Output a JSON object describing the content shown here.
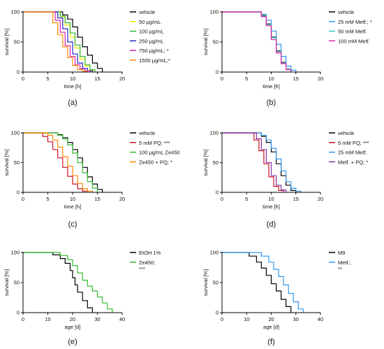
{
  "chart_data": [
    {
      "type": "line",
      "panel_label": "(a)",
      "xlabel": "time [h]",
      "ylabel": "survival [%]",
      "xlim": [
        0,
        20
      ],
      "ylim": [
        0,
        100
      ],
      "xticks": [
        "0",
        "5",
        "10",
        "15",
        "20"
      ],
      "yticks": [
        "0",
        "50",
        "100"
      ],
      "step": true,
      "legend_position": "right",
      "series": [
        {
          "name": "vehicle",
          "color": "#000000",
          "x": [
            0,
            7,
            8,
            9,
            10,
            11,
            12,
            13,
            14,
            15,
            16
          ],
          "y": [
            100,
            100,
            95,
            88,
            75,
            58,
            42,
            28,
            15,
            6,
            0
          ]
        },
        {
          "name": "50 μg/mL",
          "color": "#f2e600",
          "x": [
            0,
            6.5,
            7.5,
            8.5,
            9.5,
            10.5,
            11.5,
            12.5,
            13.5,
            14.5
          ],
          "y": [
            100,
            100,
            92,
            78,
            58,
            40,
            22,
            10,
            3,
            0
          ]
        },
        {
          "name": "100 μg/mL",
          "color": "#33bb33",
          "x": [
            0,
            6.5,
            7.5,
            8.5,
            9.5,
            10.5,
            11.5,
            12.5,
            13.5,
            14.5
          ],
          "y": [
            100,
            100,
            93,
            82,
            65,
            45,
            26,
            12,
            4,
            0
          ]
        },
        {
          "name": "250 μg/mL",
          "color": "#2222cc",
          "x": [
            0,
            6,
            7,
            8,
            9,
            10,
            11,
            12,
            13,
            14
          ],
          "y": [
            100,
            100,
            90,
            72,
            50,
            30,
            15,
            6,
            2,
            0
          ]
        },
        {
          "name": "750 μg/mL; *",
          "color": "#dd22aa",
          "x": [
            0,
            5.5,
            6.5,
            7.5,
            8.5,
            9.5,
            10.5,
            11.5,
            12.5,
            13.5
          ],
          "y": [
            100,
            100,
            86,
            66,
            44,
            26,
            12,
            5,
            2,
            0
          ]
        },
        {
          "name": "1500 μg/mL;*",
          "color": "#ff8800",
          "x": [
            0,
            5,
            6,
            7,
            8,
            9,
            10,
            11,
            12,
            13
          ],
          "y": [
            100,
            100,
            82,
            62,
            42,
            24,
            11,
            4,
            1,
            0
          ]
        }
      ]
    },
    {
      "type": "line",
      "panel_label": "(b)",
      "xlabel": "time [h]",
      "ylabel": "survival [%]",
      "xlim": [
        0,
        20
      ],
      "ylim": [
        0,
        100
      ],
      "xticks": [
        "0",
        "5",
        "10",
        "15",
        "20"
      ],
      "yticks": [
        "0",
        "50",
        "100"
      ],
      "step": true,
      "legend_position": "right",
      "series": [
        {
          "name": "vehicle",
          "color": "#000000",
          "x": [
            0,
            7,
            8,
            9,
            10,
            11,
            12,
            13,
            14
          ],
          "y": [
            100,
            100,
            94,
            80,
            58,
            35,
            16,
            5,
            0
          ]
        },
        {
          "name": "25 mM Metf.; *",
          "color": "#3399ee",
          "x": [
            0,
            7,
            8,
            9,
            10,
            11,
            12,
            13,
            14,
            15
          ],
          "y": [
            100,
            100,
            96,
            86,
            68,
            46,
            26,
            10,
            3,
            0
          ]
        },
        {
          "name": "50 mM Metf.",
          "color": "#33ccbb",
          "x": [
            0,
            7,
            8,
            9,
            10,
            11,
            12,
            13,
            14
          ],
          "y": [
            100,
            100,
            93,
            79,
            57,
            34,
            15,
            5,
            0
          ]
        },
        {
          "name": "100 mM Metf.",
          "color": "#dd22aa",
          "x": [
            0,
            7,
            8,
            9,
            10,
            11,
            12,
            13,
            14
          ],
          "y": [
            100,
            100,
            92,
            77,
            54,
            32,
            14,
            4,
            0
          ]
        }
      ]
    },
    {
      "type": "line",
      "panel_label": "(c)",
      "xlabel": "time [h]",
      "ylabel": "survival [%]",
      "xlim": [
        0,
        20
      ],
      "ylim": [
        0,
        100
      ],
      "xticks": [
        "0",
        "5",
        "10",
        "15",
        "20"
      ],
      "yticks": [
        "0",
        "50",
        "100"
      ],
      "step": true,
      "legend_position": "right",
      "series": [
        {
          "name": "vehicle",
          "color": "#000000",
          "x": [
            0,
            6,
            7,
            8,
            9,
            10,
            11,
            12,
            13,
            14,
            15,
            16
          ],
          "y": [
            100,
            100,
            97,
            92,
            84,
            72,
            58,
            42,
            26,
            14,
            5,
            0
          ]
        },
        {
          "name": "5 mM PQ; ***",
          "color": "#cc1122",
          "x": [
            0,
            3,
            4,
            5,
            6,
            7,
            8,
            9,
            10,
            11,
            12,
            13
          ],
          "y": [
            100,
            100,
            94,
            85,
            72,
            58,
            42,
            27,
            14,
            6,
            2,
            0
          ]
        },
        {
          "name": "100 μg/mL Ze450",
          "color": "#33bb33",
          "x": [
            0,
            6,
            7,
            8,
            9,
            10,
            11,
            12,
            13,
            14,
            15
          ],
          "y": [
            100,
            100,
            96,
            90,
            80,
            66,
            50,
            33,
            18,
            7,
            0
          ]
        },
        {
          "name": "Ze450 + PQ; *",
          "color": "#ff8800",
          "x": [
            0,
            4,
            5,
            6,
            7,
            8,
            9,
            10,
            11,
            12,
            13,
            14
          ],
          "y": [
            100,
            100,
            96,
            88,
            76,
            60,
            44,
            28,
            15,
            6,
            2,
            0
          ]
        }
      ]
    },
    {
      "type": "line",
      "panel_label": "(d)",
      "xlabel": "time [h]",
      "ylabel": "survival [%]",
      "xlim": [
        0,
        20
      ],
      "ylim": [
        0,
        100
      ],
      "xticks": [
        "0",
        "5",
        "10",
        "15",
        "20"
      ],
      "yticks": [
        "0",
        "50",
        "100"
      ],
      "step": true,
      "legend_position": "right",
      "series": [
        {
          "name": "vehicle",
          "color": "#000000",
          "x": [
            0,
            7,
            8,
            9,
            10,
            11,
            12,
            13,
            14,
            15
          ],
          "y": [
            100,
            100,
            94,
            84,
            68,
            48,
            28,
            12,
            3,
            0
          ]
        },
        {
          "name": "5 mM PQ; ***",
          "color": "#cc1122",
          "x": [
            0,
            5.5,
            6.5,
            7.5,
            8.5,
            9.5,
            10.5,
            11.5,
            12.5
          ],
          "y": [
            100,
            100,
            88,
            70,
            48,
            26,
            10,
            3,
            0
          ]
        },
        {
          "name": "25 mM Metf.",
          "color": "#3399ee",
          "x": [
            0,
            7,
            8,
            9,
            10,
            11,
            12,
            13,
            14,
            15,
            16
          ],
          "y": [
            100,
            100,
            96,
            88,
            74,
            56,
            36,
            18,
            7,
            2,
            0
          ]
        },
        {
          "name": "Metf. + PQ; *",
          "color": "#8833aa",
          "x": [
            0,
            6,
            7,
            8,
            9,
            10,
            11,
            12,
            13
          ],
          "y": [
            100,
            100,
            90,
            72,
            50,
            28,
            12,
            4,
            0
          ]
        }
      ]
    },
    {
      "type": "line",
      "panel_label": "(e)",
      "xlabel": "age [d]",
      "ylabel": "survival [%]",
      "xlim": [
        0,
        40
      ],
      "ylim": [
        0,
        100
      ],
      "xticks": [
        "0",
        "10",
        "20",
        "30",
        "40"
      ],
      "yticks": [
        "0",
        "50",
        "100"
      ],
      "step": true,
      "legend_position": "right",
      "series": [
        {
          "name": "EtOH 1%",
          "color": "#000000",
          "x": [
            0,
            8,
            12,
            15,
            17,
            19,
            20,
            21,
            22,
            24,
            26,
            28
          ],
          "y": [
            100,
            100,
            96,
            90,
            82,
            70,
            58,
            46,
            34,
            20,
            8,
            0
          ]
        },
        {
          "name": "Ze450; ***",
          "color": "#33bb33",
          "x": [
            0,
            10,
            15,
            18,
            20,
            22,
            24,
            26,
            28,
            30,
            32,
            34,
            36
          ],
          "y": [
            100,
            100,
            95,
            88,
            78,
            66,
            54,
            44,
            36,
            26,
            16,
            6,
            0
          ]
        }
      ]
    },
    {
      "type": "line",
      "panel_label": "(f)",
      "xlabel": "age [d]",
      "ylabel": "survival [%]",
      "xlim": [
        0,
        40
      ],
      "ylim": [
        0,
        100
      ],
      "xticks": [
        "0",
        "10",
        "20",
        "30",
        "40"
      ],
      "yticks": [
        "0",
        "50",
        "100"
      ],
      "step": true,
      "legend_position": "right",
      "series": [
        {
          "name": "M9",
          "color": "#000000",
          "x": [
            0,
            8,
            11,
            14,
            16,
            18,
            20,
            22,
            24,
            26,
            28
          ],
          "y": [
            100,
            100,
            94,
            84,
            74,
            62,
            48,
            36,
            22,
            10,
            0
          ]
        },
        {
          "name": "Metf.; **",
          "color": "#3399ee",
          "x": [
            0,
            12,
            16,
            19,
            21,
            23,
            25,
            27,
            29,
            31,
            33
          ],
          "y": [
            100,
            100,
            94,
            84,
            72,
            60,
            46,
            32,
            18,
            6,
            0
          ]
        }
      ]
    }
  ]
}
